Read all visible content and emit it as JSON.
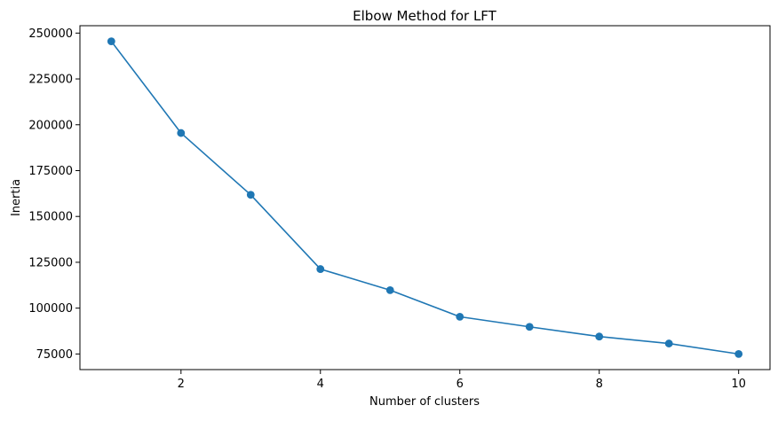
{
  "chart_data": {
    "type": "line",
    "title": "Elbow Method for LFT",
    "xlabel": "Number of clusters",
    "ylabel": "Inertia",
    "x": [
      1,
      2,
      3,
      4,
      5,
      6,
      7,
      8,
      9,
      10
    ],
    "series": [
      {
        "values": [
          245500,
          195500,
          161800,
          121300,
          109800,
          95300,
          89800,
          84500,
          80700,
          75000
        ],
        "color": "#1f77b4",
        "marker": "circle"
      }
    ],
    "xlim": [
      0.55,
      10.45
    ],
    "ylim": [
      66475,
      254025
    ],
    "xticks": [
      2,
      4,
      6,
      8,
      10
    ],
    "xtick_labels": [
      "2",
      "4",
      "6",
      "8",
      "10"
    ],
    "yticks": [
      75000,
      100000,
      125000,
      150000,
      175000,
      200000,
      225000,
      250000
    ],
    "ytick_labels": [
      "75000",
      "100000",
      "125000",
      "150000",
      "175000",
      "200000",
      "225000",
      "250000"
    ],
    "grid": false,
    "legend": "none"
  }
}
